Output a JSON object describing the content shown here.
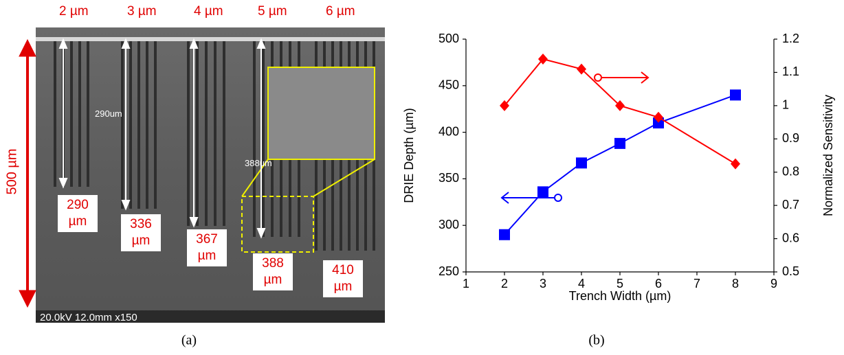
{
  "image_panel": {
    "width_labels": [
      "2 µm",
      "3 µm",
      "4 µm",
      "5 µm",
      "6 µm"
    ],
    "height_label": "500 µm",
    "measure_labels": [
      "290um",
      "388um"
    ],
    "depth_labels": [
      "290 µm",
      "336 µm",
      "367 µm",
      "388 µm",
      "410 µm"
    ],
    "sem_info": "20.0kV 12.0mm x150",
    "caption": "(a)"
  },
  "chart_data": {
    "type": "line",
    "caption": "(b)",
    "xlabel": "Trench Width (µm)",
    "ylabel": "DRIE Depth (µm)",
    "y2label": "Normalized Sensitivity",
    "x": [
      2,
      3,
      4,
      5,
      6,
      8
    ],
    "xlim": [
      1,
      9
    ],
    "xticks": [
      1,
      2,
      3,
      4,
      5,
      6,
      7,
      8,
      9
    ],
    "ylim": [
      250,
      500
    ],
    "yticks": [
      250,
      300,
      350,
      400,
      450,
      500
    ],
    "y2lim": [
      0.5,
      1.2
    ],
    "y2ticks": [
      0.5,
      0.6,
      0.7,
      0.8,
      0.9,
      1,
      1.1,
      1.2
    ],
    "series": [
      {
        "color": "#0000ff",
        "marker": "square",
        "values": [
          290,
          336,
          367,
          388,
          410,
          440
        ]
      },
      {
        "color": "#ff0000",
        "marker": "diamond",
        "axis": "y2",
        "values": [
          1.0,
          1.14,
          1.11,
          1.0,
          0.965,
          0.825
        ]
      }
    ]
  }
}
